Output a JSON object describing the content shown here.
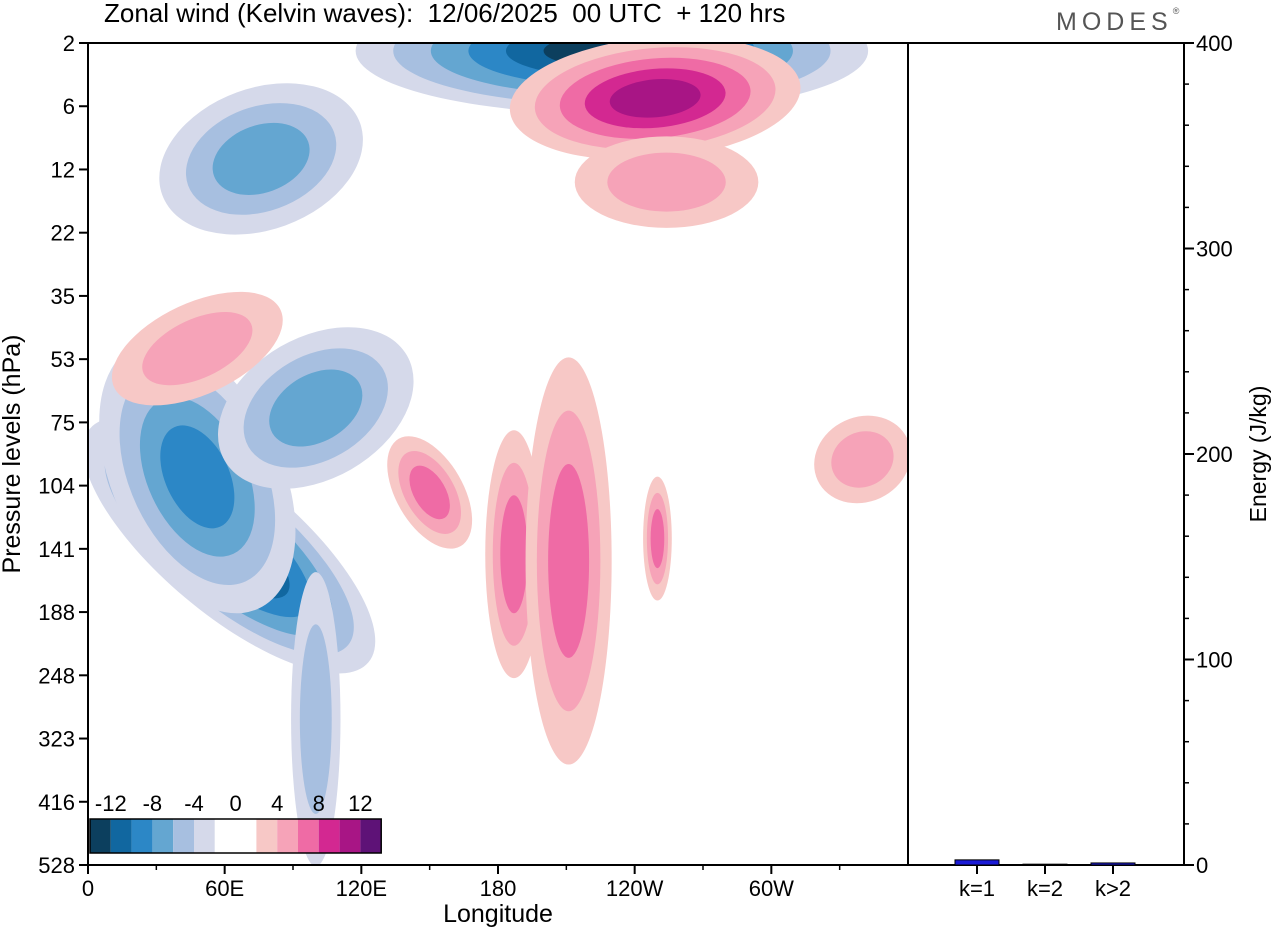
{
  "header": {
    "title": "Zonal wind (Kelvin waves):  12/06/2025  00 UTC  + 120 hrs",
    "logo_text": "MODES",
    "logo_mark": "®"
  },
  "chart_data": [
    {
      "type": "heatmap",
      "title": "Zonal wind (Kelvin waves):  12/06/2025  00 UTC  + 120 hrs",
      "xlabel": "Longitude",
      "ylabel": "Pressure levels (hPa)",
      "x_ticks": [
        "0",
        "60E",
        "120E",
        "180",
        "120W",
        "60W"
      ],
      "x_tick_values": [
        0,
        60,
        120,
        180,
        240,
        300
      ],
      "xlim": [
        0,
        360
      ],
      "y_ticks": [
        "2",
        "6",
        "12",
        "22",
        "35",
        "53",
        "75",
        "104",
        "141",
        "188",
        "248",
        "323",
        "416",
        "528"
      ],
      "colorbar": {
        "tick_labels": [
          "-12",
          "-8",
          "-4",
          "0",
          "4",
          "8",
          "12"
        ],
        "colors": [
          "#0c3f5e",
          "#1167a0",
          "#2c87c6",
          "#64a6d1",
          "#a7bfe0",
          "#d5d9ea",
          "#ffffff",
          "#ffffff",
          "#f7c8c6",
          "#f6a3b8",
          "#ef6ba5",
          "#d32891",
          "#a81585",
          "#5e1277"
        ]
      },
      "contour_colors": {
        "neg1": "#d5d9ea",
        "neg2": "#a7bfe0",
        "neg3": "#64a6d1",
        "neg4": "#2c87c6",
        "neg5": "#1167a0",
        "neg6": "#0c3f5e",
        "pos1": "#f7c8c6",
        "pos2": "#f6a3b8",
        "pos3": "#ef6ba5",
        "pos4": "#d32891",
        "pos5": "#a81585",
        "pos6": "#5e1277"
      },
      "features": [
        {
          "lon": 62,
          "p": 139,
          "rx": 8,
          "ry": 2.3,
          "level": -6,
          "tilt": -50
        },
        {
          "lon": 48,
          "p": 100,
          "rx": 14,
          "ry": 2.6,
          "level": -4,
          "tilt": -25
        },
        {
          "lon": 100,
          "p": 70,
          "rx": 22,
          "ry": 1.6,
          "level": -3,
          "tilt": -30
        },
        {
          "lon": 76,
          "p": 11,
          "rx": 22,
          "ry": 1.6,
          "level": -3,
          "tilt": -20
        },
        {
          "lon": 230,
          "p": 2.5,
          "rx": 30,
          "ry": 0.8,
          "level": -6,
          "tilt": 0
        },
        {
          "lon": 249,
          "p": 5.5,
          "rx": 20,
          "ry": 0.9,
          "level": 5,
          "tilt": -5
        },
        {
          "lon": 187,
          "p": 145,
          "rx": 6,
          "ry": 2.8,
          "level": 3,
          "tilt": 0
        },
        {
          "lon": 211,
          "p": 150,
          "rx": 9,
          "ry": 4.6,
          "level": 3,
          "tilt": 0
        },
        {
          "lon": 150,
          "p": 108,
          "rx": 7,
          "ry": 1.4,
          "level": 3,
          "tilt": -30
        },
        {
          "lon": 250,
          "p": 135,
          "rx": 3,
          "ry": 1.4,
          "level": 3,
          "tilt": 0
        },
        {
          "lon": 340,
          "p": 92,
          "rx": 14,
          "ry": 1.3,
          "level": 2,
          "tilt": -25
        },
        {
          "lon": 254,
          "p": 14,
          "rx": 26,
          "ry": 1.4,
          "level": 2,
          "tilt": 0
        },
        {
          "lon": 48,
          "p": 50,
          "rx": 26,
          "ry": 1.4,
          "level": 2,
          "tilt": -25
        },
        {
          "lon": 100,
          "p": 300,
          "rx": 7,
          "ry": 4.5,
          "level": -2,
          "tilt": 0
        }
      ]
    },
    {
      "type": "bar",
      "categories": [
        "k=1",
        "k=2",
        "k>2"
      ],
      "values": [
        2.5,
        0.4,
        1.0
      ],
      "ylabel": "Energy (J/kg)",
      "ylim": [
        0,
        400
      ],
      "y_ticks": [
        0,
        100,
        200,
        300,
        400
      ],
      "bar_color": "#1a1ad6"
    }
  ]
}
